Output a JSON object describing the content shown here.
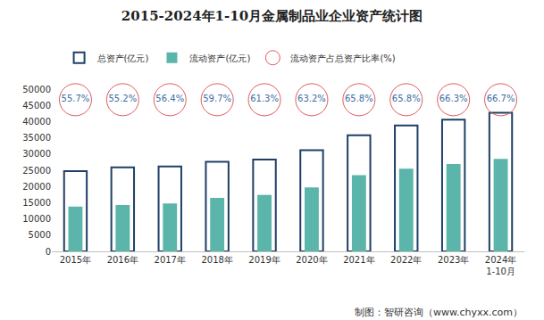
{
  "chart_data": {
    "type": "bar",
    "title": "2015-2024年1-10月金属制品业企业资产统计图",
    "categories": [
      "2015年",
      "2016年",
      "2017年",
      "2018年",
      "2019年",
      "2020年",
      "2021年",
      "2022年",
      "2023年",
      "2024年\n1-10月"
    ],
    "series": [
      {
        "name": "总资产(亿元)",
        "type": "bar",
        "color": "#1f3f66",
        "values": [
          24700,
          25900,
          26200,
          27600,
          28300,
          31200,
          35800,
          38800,
          40600,
          42700
        ]
      },
      {
        "name": "流动资产(亿元)",
        "type": "bar",
        "color": "#5bb5aa",
        "values": [
          13800,
          14300,
          14800,
          16500,
          17400,
          19700,
          23500,
          25500,
          26900,
          28500
        ]
      },
      {
        "name": "流动资产占总资产比率(%)",
        "type": "scatter",
        "marker": "circle",
        "color": "#e05a5a",
        "values": [
          55.7,
          55.2,
          56.4,
          59.7,
          61.3,
          63.2,
          65.8,
          65.8,
          66.3,
          66.7
        ],
        "value_labels": [
          "55.7%",
          "55.2%",
          "56.4%",
          "59.7%",
          "61.3%",
          "63.2%",
          "65.8%",
          "65.8%",
          "66.3%",
          "66.7%"
        ],
        "data_labels": true
      }
    ],
    "ylim": [
      0,
      50000
    ],
    "yticks": [
      0,
      5000,
      10000,
      15000,
      20000,
      25000,
      30000,
      35000,
      40000,
      45000,
      50000
    ],
    "grid": false,
    "legend": "top",
    "source": "制图：智研咨询（www.chyxx.com）"
  }
}
